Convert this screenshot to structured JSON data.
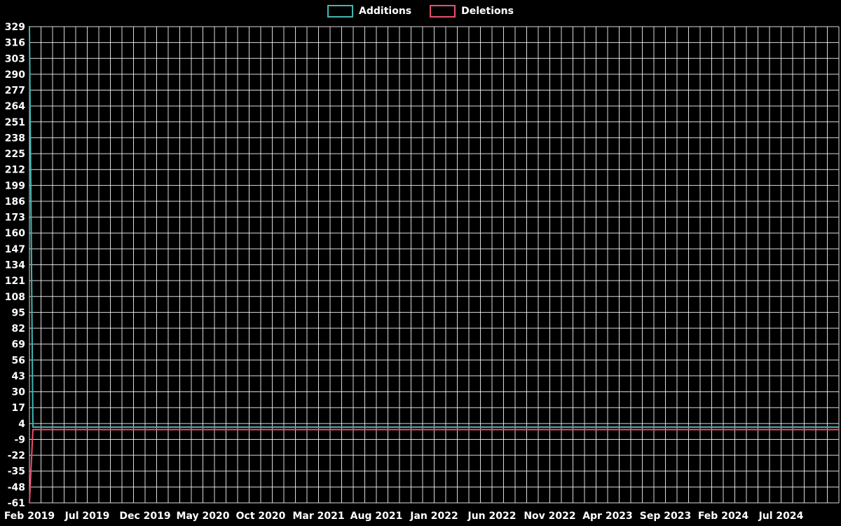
{
  "legend": [
    {
      "label": "Additions",
      "color": "#45b5b2"
    },
    {
      "label": "Deletions",
      "color": "#e8506e"
    }
  ],
  "chart_data": {
    "type": "line",
    "title": "",
    "xlabel": "",
    "ylabel": "",
    "background_color": "#000000",
    "grid": true,
    "grid_color": "#ffffff",
    "text_color": "#ffffff",
    "legend_position": "top-center",
    "ylim": [
      -61,
      329
    ],
    "y_ticks": [
      329,
      316,
      303,
      290,
      277,
      264,
      251,
      238,
      225,
      212,
      199,
      186,
      173,
      160,
      147,
      134,
      121,
      108,
      95,
      82,
      69,
      56,
      43,
      30,
      17,
      4,
      -9,
      -22,
      -35,
      -48,
      -61
    ],
    "x_tick_labels": [
      "Feb 2019",
      "Jul 2019",
      "Dec 2019",
      "May 2020",
      "Oct 2020",
      "Mar 2021",
      "Aug 2021",
      "Jan 2022",
      "Jun 2022",
      "Nov 2022",
      "Apr 2023",
      "Sep 2023",
      "Feb 2024",
      "Jul 2024"
    ],
    "x_tick_months": [
      0,
      5,
      10,
      15,
      20,
      25,
      30,
      35,
      40,
      45,
      50,
      55,
      60,
      65
    ],
    "xlim_months": [
      0,
      70
    ],
    "x_gridline_every_months": 1,
    "series": [
      {
        "name": "Additions",
        "color": "#45b5b2",
        "points": [
          [
            0,
            329
          ],
          [
            0.3,
            1
          ],
          [
            70,
            1
          ]
        ]
      },
      {
        "name": "Deletions",
        "color": "#e8506e",
        "points": [
          [
            0,
            -61
          ],
          [
            0.3,
            -1
          ],
          [
            70,
            -1
          ]
        ]
      }
    ]
  }
}
